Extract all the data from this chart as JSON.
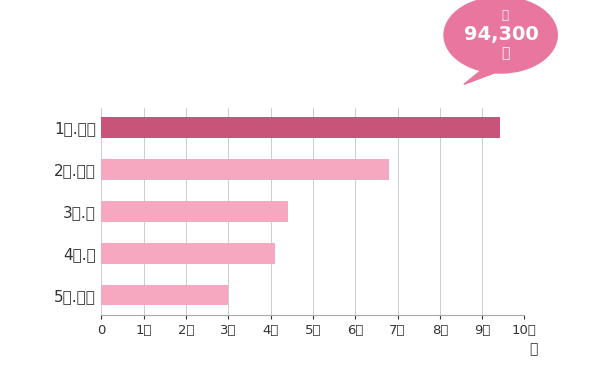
{
  "categories": [
    "5位.子宮",
    "4位.胃",
    "3位.肺",
    "2位.大腥",
    "1位.乳房"
  ],
  "values": [
    30000,
    41000,
    44000,
    68000,
    94300
  ],
  "bar_colors": [
    "#f5a8c0",
    "#f5a8c0",
    "#f5a8c0",
    "#f5a8c0",
    "#c9547a"
  ],
  "xlim": [
    0,
    100000
  ],
  "xticks": [
    0,
    10000,
    20000,
    30000,
    40000,
    50000,
    60000,
    70000,
    80000,
    90000,
    100000
  ],
  "xtick_labels": [
    "0",
    "1万",
    "2万",
    "3万",
    "4万",
    "5万",
    "6万",
    "7万",
    "8万",
    "9万",
    "10万"
  ],
  "xlabel_suffix": "人",
  "bubble_text_line1": "約",
  "bubble_text_line2": "94,300",
  "bubble_text_line3": "人",
  "bubble_color": "#e8769e",
  "background_color": "#ffffff",
  "grid_color": "#cccccc",
  "bar_height": 0.5,
  "ylabel_fontsize": 11,
  "xtick_fontsize": 9.5
}
